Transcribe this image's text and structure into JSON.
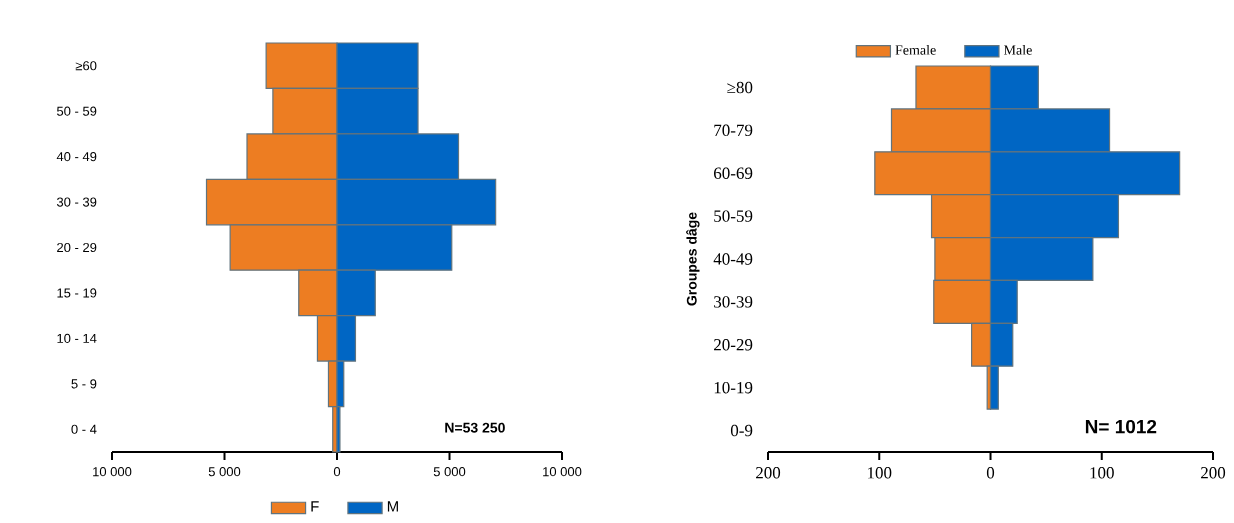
{
  "chart_data": [
    {
      "type": "bar",
      "orientation": "horizontal",
      "stacked": true,
      "categories": [
        "≥60",
        "50 - 59",
        "40 - 49",
        "30 - 39",
        "20 - 29",
        "15 - 19",
        "10 - 14",
        "5 - 9",
        "0 - 4"
      ],
      "series": [
        {
          "name": "F",
          "color": "#ed7d22",
          "values": [
            -3150,
            -2850,
            -4000,
            -5800,
            -4750,
            -1700,
            -870,
            -380,
            -190
          ]
        },
        {
          "name": "M",
          "color": "#0066c4",
          "values": [
            3600,
            3600,
            5400,
            7050,
            5100,
            1700,
            820,
            300,
            130
          ]
        }
      ],
      "xlim": [
        -10000,
        10000
      ],
      "xticks": [
        {
          "value": -10000,
          "label": "10 000"
        },
        {
          "value": -5000,
          "label": "5 000"
        },
        0,
        {
          "value": 5000,
          "label": "5 000"
        },
        {
          "value": 10000,
          "label": "10 000"
        }
      ],
      "legend": "bottom",
      "annotations": [
        "N=53 250"
      ]
    },
    {
      "type": "bar",
      "orientation": "horizontal",
      "stacked": true,
      "categories": [
        "≥80",
        "70-79",
        "60-69",
        "50-59",
        "40-49",
        "30-39",
        "20-29",
        "10-19",
        "0-9"
      ],
      "ylabel": "Groupes dâge",
      "series": [
        {
          "name": "Female",
          "color": "#ed7d22",
          "values": [
            -67,
            -89,
            -104,
            -53,
            -50,
            -51,
            -17,
            -3,
            0
          ]
        },
        {
          "name": "Male",
          "color": "#0066c4",
          "values": [
            43,
            107,
            170,
            115,
            92,
            24,
            20,
            7,
            0
          ]
        }
      ],
      "xlim": [
        -200,
        200
      ],
      "xticks": [
        {
          "value": -200,
          "label": "200"
        },
        {
          "value": -100,
          "label": "100"
        },
        0,
        100,
        200
      ],
      "legend": "top",
      "annotations": [
        "N= 1012"
      ]
    }
  ]
}
